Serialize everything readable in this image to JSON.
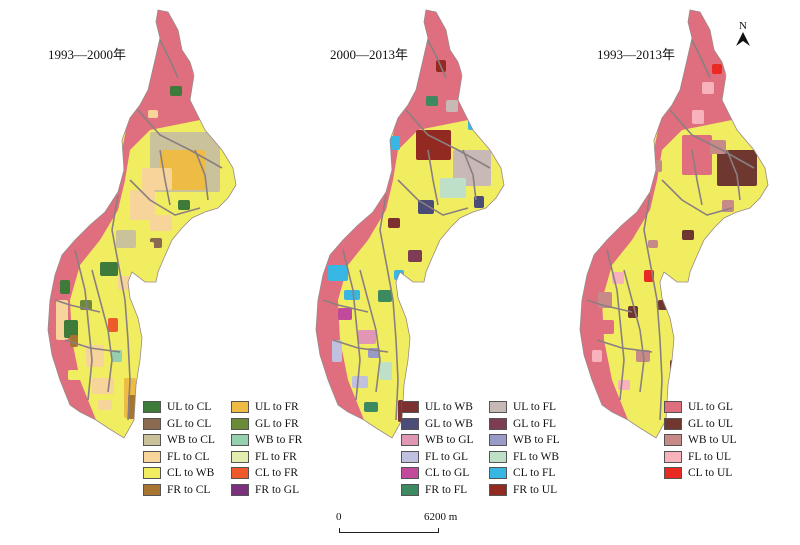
{
  "maps": [
    {
      "title": "1993—2000年",
      "legend": [
        {
          "label": "UL to CL",
          "color": "#3e7a3a"
        },
        {
          "label": "GL to CL",
          "color": "#8a6a50"
        },
        {
          "label": "WB to CL",
          "color": "#c9c29a"
        },
        {
          "label": "FL to CL",
          "color": "#f6d49a"
        },
        {
          "label": "CL to WB",
          "color": "#f1ed61"
        },
        {
          "label": "FR to CL",
          "color": "#a87530"
        },
        {
          "label": "UL to FR",
          "color": "#eebc44"
        },
        {
          "label": "GL to FR",
          "color": "#6b8b3a"
        },
        {
          "label": "WB to FR",
          "color": "#96cfae"
        },
        {
          "label": "FL to FR",
          "color": "#e4edae"
        },
        {
          "label": "CL to FR",
          "color": "#ee5a2a"
        },
        {
          "label": "FR to GL",
          "color": "#7b2f7c"
        }
      ]
    },
    {
      "title": "2000—2013年",
      "legend": [
        {
          "label": "UL to WB",
          "color": "#7c3030"
        },
        {
          "label": "GL to WB",
          "color": "#4c4c78"
        },
        {
          "label": "WB to GL",
          "color": "#e096b4"
        },
        {
          "label": "FL to GL",
          "color": "#c0c0df"
        },
        {
          "label": "CL to GL",
          "color": "#c24a9a"
        },
        {
          "label": "FR to FL",
          "color": "#3e8a60"
        },
        {
          "label": "UL to FL",
          "color": "#c8b8b6"
        },
        {
          "label": "GL to FL",
          "color": "#7e3c54"
        },
        {
          "label": "WB to FL",
          "color": "#9a9ac6"
        },
        {
          "label": "FL to WB",
          "color": "#bee0c8"
        },
        {
          "label": "CL to FL",
          "color": "#38b6e4"
        },
        {
          "label": "FR to UL",
          "color": "#922a22"
        }
      ]
    },
    {
      "title": "1993—2013年",
      "legend": [
        {
          "label": "UL to GL",
          "color": "#df6e7e"
        },
        {
          "label": "GL to UL",
          "color": "#6e3830"
        },
        {
          "label": "WB to UL",
          "color": "#c88a88"
        },
        {
          "label": "FL to UL",
          "color": "#f8b2bc"
        },
        {
          "label": "CL to UL",
          "color": "#e82a22"
        }
      ]
    }
  ],
  "north_arrow": {
    "label": "N"
  },
  "scale_bar": {
    "start": "0",
    "end": "6200 m"
  },
  "colors": {
    "base_pink": "#df6e7e",
    "base_yellow": "#f1ed61",
    "road": "#8a7f80"
  }
}
